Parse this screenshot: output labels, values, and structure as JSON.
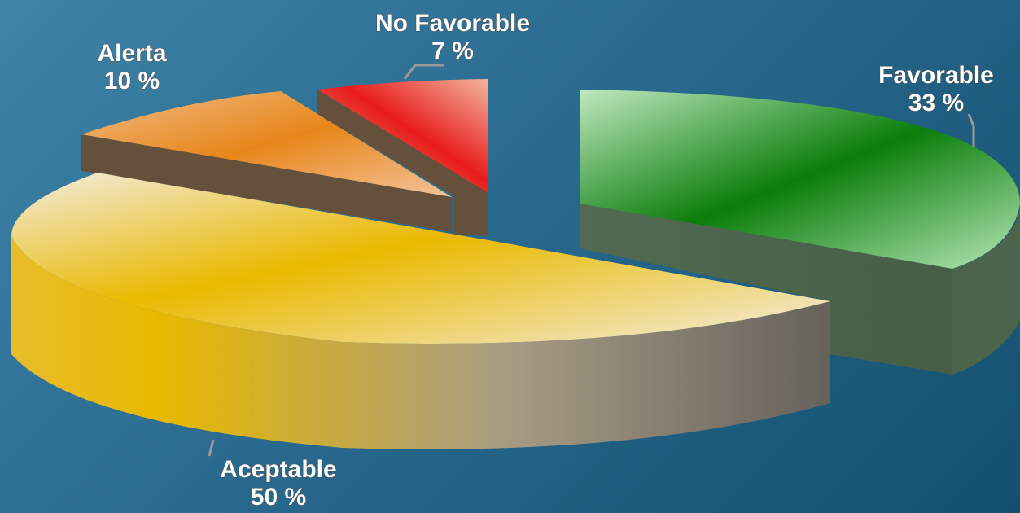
{
  "chart_data": {
    "type": "pie",
    "style": "3d-exploded",
    "categories": [
      "Favorable",
      "Aceptable",
      "Alerta",
      "No Favorable"
    ],
    "values": [
      33,
      50,
      10,
      7
    ],
    "labels": [
      "Favorable\n33 %",
      "Aceptable\n50 %",
      "Alerta\n10 %",
      "No Favorable\n7 %"
    ],
    "colors": {
      "Favorable": "#0a7d0a",
      "Aceptable": "#e8b800",
      "Alerta": "#e8861a",
      "No Favorable": "#e81c1c",
      "side_dark": "#5f5040",
      "favorable_side": "#506650"
    }
  }
}
